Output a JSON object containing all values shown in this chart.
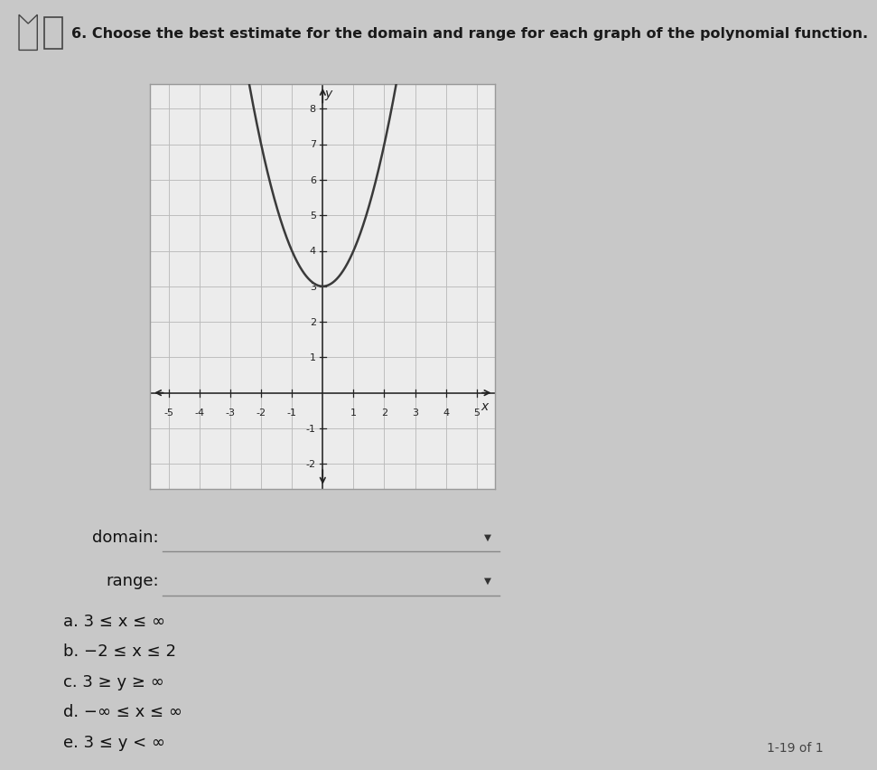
{
  "title": "6. Choose the best estimate for the domain and range for each graph of the polynomial function.",
  "title_fontsize": 11.5,
  "title_color": "#1a1a1a",
  "page_bg": "#c8c8c8",
  "graph_bg": "#ececec",
  "grid_color": "#bbbbbb",
  "curve_color": "#3a3a3a",
  "curve_lw": 1.8,
  "axis_color": "#222222",
  "tick_color": "#222222",
  "x_range": [
    -5.6,
    5.6
  ],
  "y_range": [
    -2.7,
    8.7
  ],
  "x_ticks": [
    -5,
    -4,
    -3,
    -2,
    -1,
    1,
    2,
    3,
    4,
    5
  ],
  "y_ticks": [
    -2,
    -1,
    1,
    2,
    3,
    4,
    5,
    6,
    7,
    8
  ],
  "parabola_vertex_x": 0,
  "parabola_vertex_y": 3,
  "parabola_a": 1,
  "domain_label": "domain:",
  "range_label": "range:",
  "options": [
    "a. 3 ≤ x ≤ ∞",
    "b. −2 ≤ x ≤ 2",
    "c. 3 ≥ y ≥ ∞",
    "d. −∞ ≤ x ≤ ∞",
    "e. 3 ≤ y < ∞"
  ],
  "options_fontsize": 13,
  "label_fontsize": 13,
  "footer_text": "1-19 of 1",
  "footer_fontsize": 10
}
